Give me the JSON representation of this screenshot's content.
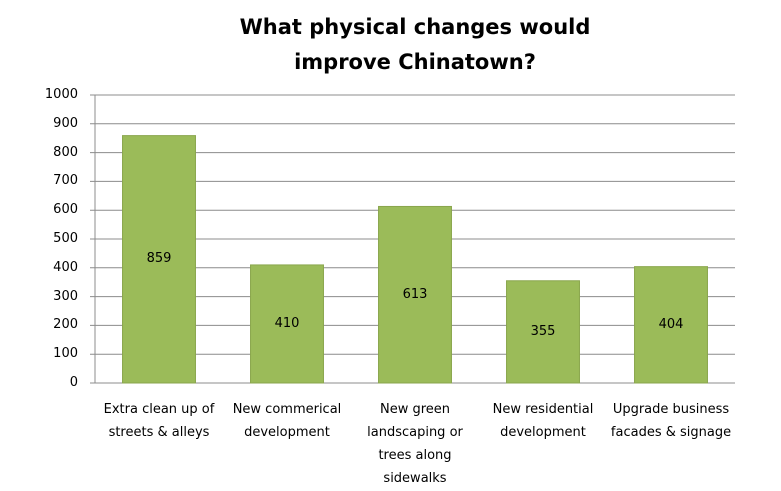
{
  "chart_data": {
    "type": "bar",
    "title": "What physical changes would improve Chinatown?",
    "categories": [
      "Extra clean up of streets & alleys",
      "New commerical development",
      "New green landscaping or trees along sidewalks",
      "New residential development",
      "Upgrade business facades & signage"
    ],
    "values": [
      859,
      410,
      613,
      355,
      404
    ],
    "color": "#9bbb59",
    "ylim": [
      0,
      1000
    ],
    "yticks": [
      0,
      100,
      200,
      300,
      400,
      500,
      600,
      700,
      800,
      900,
      1000
    ],
    "grid": true
  }
}
